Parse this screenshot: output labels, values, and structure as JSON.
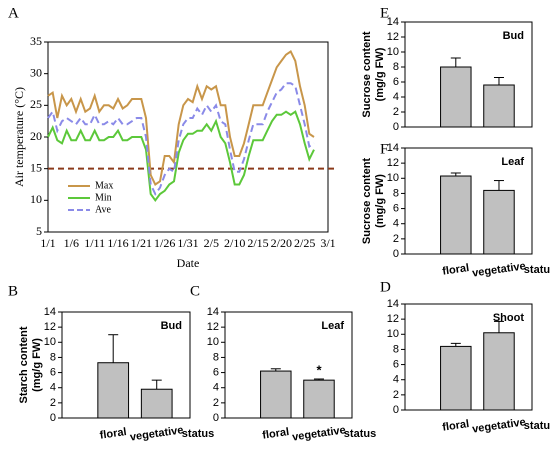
{
  "chart_data": [
    {
      "type": "line",
      "label": "A",
      "xlabel": "Date",
      "ylabel": "Air temperature (°C)",
      "categories": [
        "1/1",
        null,
        null,
        null,
        null,
        "1/6",
        null,
        null,
        null,
        null,
        "1/11",
        null,
        null,
        null,
        null,
        "1/16",
        null,
        null,
        null,
        null,
        "1/21",
        null,
        null,
        null,
        null,
        "1/26",
        null,
        null,
        null,
        null,
        "1/31",
        null,
        null,
        null,
        null,
        "2/5",
        null,
        null,
        null,
        null,
        "2/10",
        null,
        null,
        null,
        null,
        "2/15",
        null,
        null,
        null,
        null,
        "2/20",
        null,
        null,
        null,
        null,
        "2/25",
        null,
        null,
        null,
        null,
        "3/1"
      ],
      "series": [
        {
          "name": "Max",
          "color": "#c8964a",
          "dash": false,
          "values": [
            26.5,
            27,
            23,
            26.5,
            25,
            26,
            24,
            26,
            24,
            24.5,
            26.5,
            24,
            25,
            25,
            24.5,
            26,
            24.5,
            25,
            26,
            26,
            26,
            23,
            14,
            12.5,
            13,
            17,
            17,
            16,
            22,
            25,
            26,
            25.5,
            28,
            26,
            28,
            27.5,
            28,
            25,
            25,
            20,
            17,
            17,
            19,
            22,
            25,
            25,
            25,
            27,
            29,
            31,
            32,
            33,
            33.5,
            32,
            28,
            25,
            20.5,
            20,
            null,
            null,
            null
          ]
        },
        {
          "name": "Min",
          "color": "#5cc83a",
          "dash": false,
          "values": [
            20,
            21.5,
            19.5,
            19,
            21,
            19.5,
            19.5,
            21,
            19.5,
            19.5,
            21,
            19.5,
            19.5,
            20,
            20,
            21,
            19.5,
            19.5,
            20,
            20,
            20,
            18,
            11,
            10,
            11,
            11.5,
            12.5,
            13,
            17.5,
            19.5,
            20.5,
            20.5,
            21,
            21,
            22,
            21,
            22.5,
            20,
            19,
            16,
            12.5,
            12.5,
            14,
            17,
            19.5,
            19.5,
            19.5,
            21,
            22.5,
            23.5,
            23.5,
            24,
            23.5,
            24,
            22,
            19,
            16.5,
            18,
            null,
            null,
            null
          ]
        },
        {
          "name": "Ave",
          "color": "#8a8ae8",
          "dash": true,
          "values": [
            23,
            24,
            21,
            22.5,
            23,
            22.5,
            22,
            23,
            22,
            22,
            23.5,
            22,
            22,
            22.5,
            22,
            23,
            22,
            22,
            22.5,
            23,
            23,
            20,
            12.5,
            11,
            12,
            14,
            15,
            14.5,
            19.5,
            22,
            23,
            23,
            24.5,
            23.5,
            25,
            24,
            25,
            22.5,
            22,
            18,
            14.5,
            14.5,
            16.5,
            19.5,
            22,
            22,
            22,
            24,
            25.5,
            27,
            27.5,
            28.5,
            28.5,
            28,
            25,
            22,
            18.5,
            19,
            null,
            null,
            null
          ]
        }
      ],
      "reference_line": {
        "value": 15,
        "color": "#8b3a1a"
      },
      "ylim": [
        5,
        35
      ],
      "yticks": [
        5,
        10,
        15,
        20,
        25,
        30,
        35
      ],
      "legend": "lower left"
    },
    {
      "type": "bar",
      "label": "B",
      "title": "Bud",
      "ylabel": [
        "Starch content",
        "(mg/g FW)"
      ],
      "xlabel": "status",
      "categories": [
        "floral",
        "vegetative"
      ],
      "values": [
        7.3,
        3.8
      ],
      "errors": [
        3.7,
        1.2
      ],
      "color": "#c0c0c0",
      "ylim": [
        0,
        14
      ],
      "yticks": [
        0,
        2,
        4,
        6,
        8,
        10,
        12,
        14
      ]
    },
    {
      "type": "bar",
      "label": "C",
      "title": "Leaf",
      "xlabel": "status",
      "annotation": "*",
      "categories": [
        "floral",
        "vegetative"
      ],
      "values": [
        6.2,
        5.0
      ],
      "errors": [
        0.3,
        0.15
      ],
      "color": "#c0c0c0",
      "ylim": [
        0,
        14
      ],
      "yticks": [
        0,
        2,
        4,
        6,
        8,
        10,
        12,
        14
      ]
    },
    {
      "type": "bar",
      "label": "D",
      "title": "Shoot",
      "xlabel": "status",
      "categories": [
        "floral",
        "vegetative"
      ],
      "values": [
        8.4,
        10.2
      ],
      "errors": [
        0.4,
        1.5
      ],
      "color": "#c0c0c0",
      "ylim": [
        0,
        14
      ],
      "yticks": [
        0,
        2,
        4,
        6,
        8,
        10,
        12,
        14
      ]
    },
    {
      "type": "bar",
      "label": "E",
      "title": "Bud",
      "ylabel": [
        "Sucrose content",
        "(mg/g FW)"
      ],
      "values": [
        8.0,
        5.6
      ],
      "errors": [
        1.2,
        1.0
      ],
      "color": "#c0c0c0",
      "ylim": [
        0,
        14
      ],
      "yticks": [
        0,
        2,
        4,
        6,
        8,
        10,
        12,
        14
      ]
    },
    {
      "type": "bar",
      "label": "F",
      "title": "Leaf",
      "ylabel": [
        "Sucrose content",
        "(mg/g FW)"
      ],
      "xlabel": "status",
      "categories": [
        "floral",
        "vegetative"
      ],
      "values": [
        10.3,
        8.4
      ],
      "errors": [
        0.4,
        1.3
      ],
      "color": "#c0c0c0",
      "ylim": [
        0,
        14
      ],
      "yticks": [
        0,
        2,
        4,
        6,
        8,
        10,
        12,
        14
      ]
    }
  ]
}
